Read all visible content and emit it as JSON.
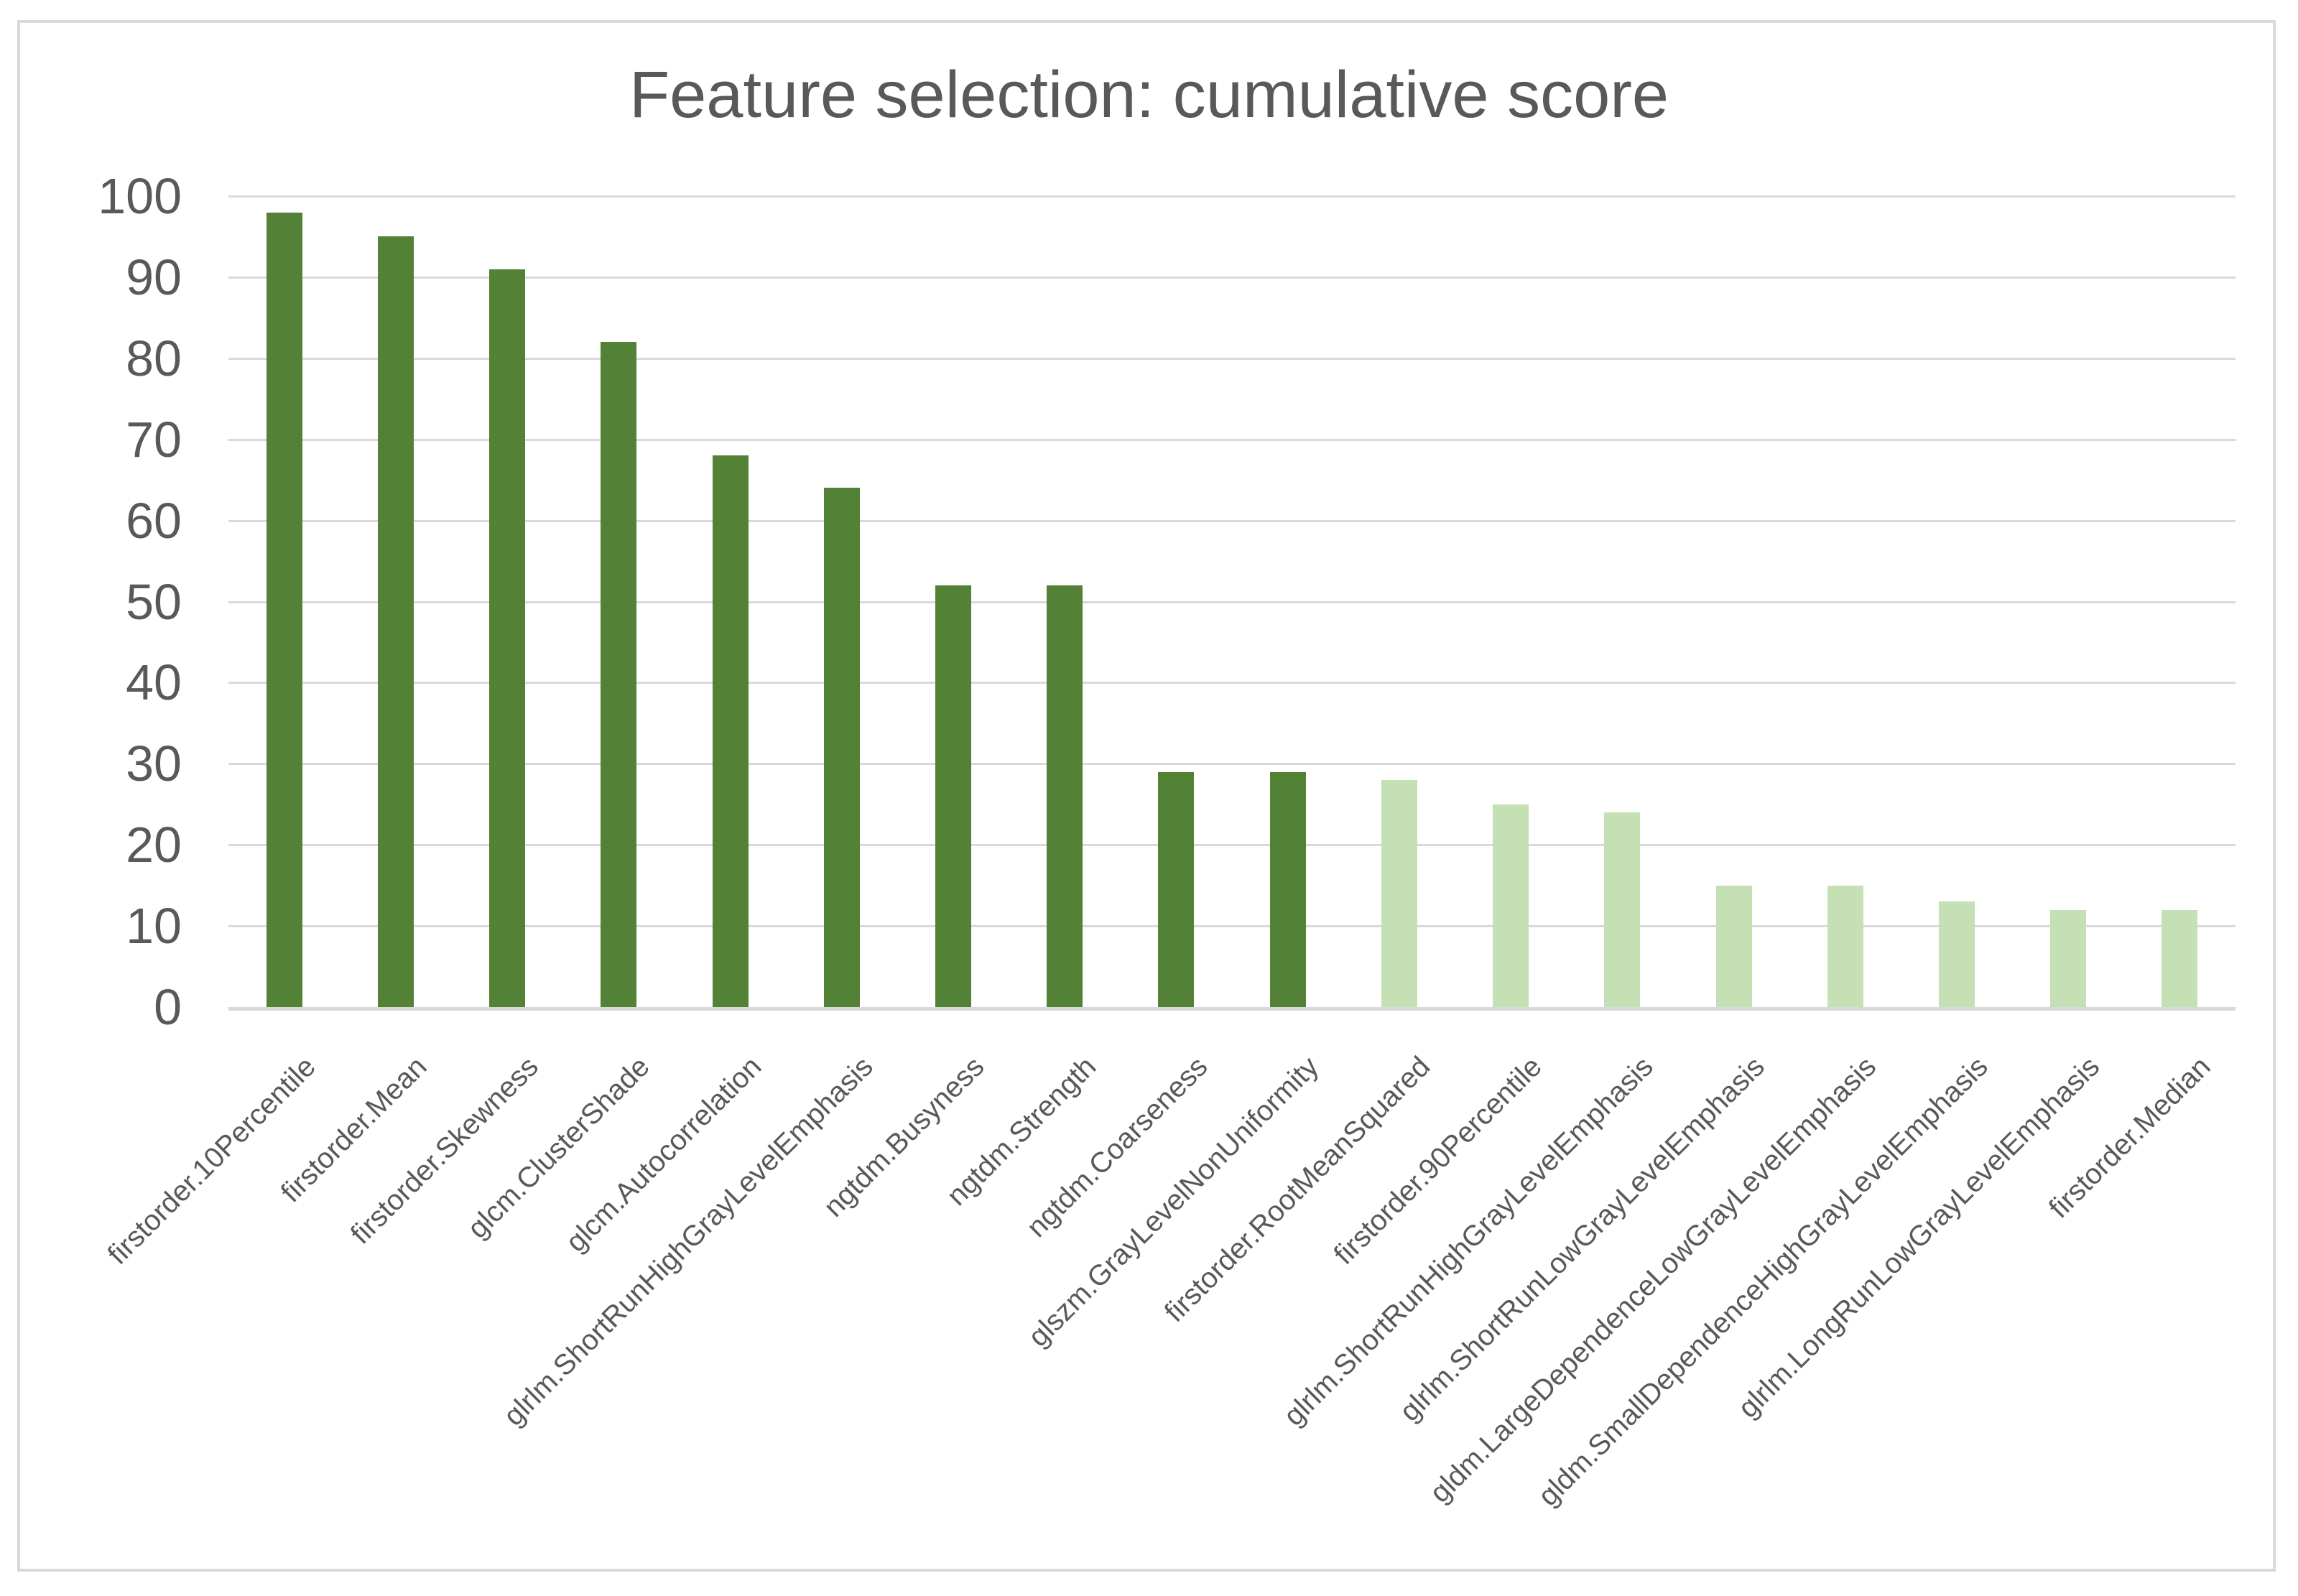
{
  "chart_data": {
    "type": "bar",
    "title": "Feature selection: cumulative score",
    "xlabel": "",
    "ylabel": "",
    "categories": [
      "firstorder.10Percentile",
      "firstorder.Mean",
      "firstorder.Skewness",
      "glcm.ClusterShade",
      "glcm.Autocorrelation",
      "glrlm.ShortRunHighGrayLevelEmphasis",
      "ngtdm.Busyness",
      "ngtdm.Strength",
      "ngtdm.Coarseness",
      "glszm.GrayLevelNonUniformity",
      "firstorder.RootMeanSquared",
      "firstorder.90Percentile",
      "glrlm.ShortRunHighGrayLevelEmphasis",
      "glrlm.ShortRunLowGrayLevelEmphasis",
      "gldm.LargeDependenceLowGrayLevelEmphasis",
      "gldm.SmallDependenceHighGrayLevelEmphasis",
      "glrlm.LongRunLowGrayLevelEmphasis",
      "firstorder.Median"
    ],
    "values": [
      98,
      95,
      91,
      82,
      68,
      64,
      52,
      52,
      29,
      29,
      28,
      25,
      24,
      15,
      15,
      13,
      12,
      12
    ],
    "bar_shades": [
      "dark",
      "dark",
      "dark",
      "dark",
      "dark",
      "dark",
      "dark",
      "dark",
      "dark",
      "dark",
      "light",
      "light",
      "light",
      "light",
      "light",
      "light",
      "light",
      "light"
    ],
    "colors": {
      "dark": "#538135",
      "light": "#c5e0b4"
    },
    "ylim": [
      0,
      100
    ],
    "yticks": [
      0,
      10,
      20,
      30,
      40,
      50,
      60,
      70,
      80,
      90,
      100
    ],
    "grid": true,
    "legend": false,
    "title_color": "#595959",
    "axis_text_color": "#595959",
    "gridline_color": "#d9d9d9",
    "border_color": "#d9d9d9"
  }
}
